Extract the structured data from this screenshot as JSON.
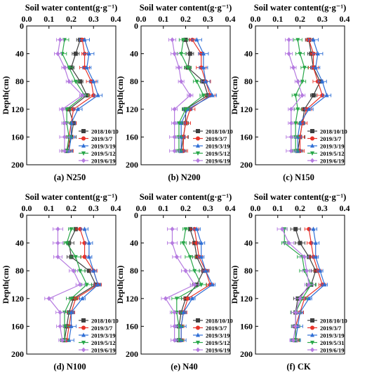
{
  "colors": {
    "2018/10/10": "#3f3f3f",
    "2019/3/7": "#e8332a",
    "2019/3/19": "#2f6fd6",
    "2019/5/12": "#2aa84a",
    "2019/5/31": "#2aa84a",
    "2019/6/19": "#b57ae0"
  },
  "markers": {
    "2018/10/10": "square",
    "2019/3/7": "circle",
    "2019/3/19": "triangle-up",
    "2019/5/12": "triangle-down",
    "2019/5/31": "triangle-down",
    "2019/6/19": "diamond"
  },
  "chart_data": [
    {
      "type": "line",
      "caption": "(a) N250",
      "xlabel": "Soil water content(g·g⁻¹)",
      "ylabel": "Depth(cm)",
      "xlim": [
        0,
        0.4
      ],
      "ylim": [
        0,
        200
      ],
      "y_inverted": true,
      "x_axis_position": "top",
      "xticks": [
        "0.0",
        "0.1",
        "0.2",
        "0.3",
        "0.4"
      ],
      "yticks": [
        "0",
        "40",
        "80",
        "120",
        "160",
        "200"
      ],
      "legend_position": "bottom-right",
      "depths": [
        20,
        40,
        60,
        80,
        100,
        120,
        140,
        160,
        180
      ],
      "series": [
        {
          "name": "2018/10/10",
          "values": [
            0.24,
            0.22,
            0.2,
            0.24,
            0.27,
            0.19,
            0.21,
            0.2,
            0.18
          ]
        },
        {
          "name": "2019/3/7",
          "values": [
            0.25,
            0.26,
            0.26,
            0.29,
            0.3,
            0.21,
            0.2,
            0.19,
            0.19
          ]
        },
        {
          "name": "2019/3/19",
          "values": [
            0.26,
            0.28,
            0.27,
            0.3,
            0.32,
            0.23,
            0.2,
            0.2,
            0.19
          ]
        },
        {
          "name": "2019/5/12",
          "values": [
            0.17,
            0.16,
            0.19,
            0.22,
            0.26,
            0.18,
            0.18,
            0.19,
            0.18
          ]
        },
        {
          "name": "2019/6/19",
          "values": [
            0.15,
            0.14,
            0.17,
            0.19,
            0.25,
            0.16,
            0.17,
            0.17,
            0.17
          ]
        }
      ]
    },
    {
      "type": "line",
      "caption": "(b) N200",
      "xlabel": "Soil water content(g·g⁻¹)",
      "ylabel": "Depth(cm)",
      "xlim": [
        0,
        0.4
      ],
      "ylim": [
        0,
        200
      ],
      "y_inverted": true,
      "x_axis_position": "top",
      "xticks": [
        "0.0",
        "0.1",
        "0.2",
        "0.3",
        "0.4"
      ],
      "yticks": [
        "0",
        "40",
        "80",
        "120",
        "160",
        "200"
      ],
      "legend_position": "bottom-right",
      "depths": [
        20,
        40,
        60,
        80,
        100,
        120,
        140,
        160,
        180
      ],
      "series": [
        {
          "name": "2018/10/10",
          "values": [
            0.2,
            0.22,
            0.21,
            0.28,
            0.3,
            0.2,
            0.2,
            0.19,
            0.18
          ]
        },
        {
          "name": "2019/3/7",
          "values": [
            0.23,
            0.27,
            0.27,
            0.29,
            0.31,
            0.22,
            0.2,
            0.19,
            0.19
          ]
        },
        {
          "name": "2019/3/19",
          "values": [
            0.25,
            0.28,
            0.28,
            0.29,
            0.32,
            0.21,
            0.18,
            0.18,
            0.18
          ]
        },
        {
          "name": "2019/5/12",
          "values": [
            0.19,
            0.18,
            0.21,
            0.25,
            0.28,
            0.2,
            0.17,
            0.17,
            0.17
          ]
        },
        {
          "name": "2019/6/19",
          "values": [
            0.14,
            0.15,
            0.17,
            0.18,
            0.22,
            0.15,
            0.15,
            0.15,
            0.15
          ]
        }
      ]
    },
    {
      "type": "line",
      "caption": "(c) N150",
      "xlabel": "Soil water content(g·g⁻¹)",
      "ylabel": "Depth(cm)",
      "xlim": [
        0,
        0.4
      ],
      "ylim": [
        0,
        200
      ],
      "y_inverted": true,
      "x_axis_position": "top",
      "xticks": [
        "0.0",
        "0.1",
        "0.2",
        "0.3",
        "0.4"
      ],
      "yticks": [
        "0",
        "40",
        "80",
        "120",
        "160",
        "200"
      ],
      "legend_position": "bottom-right",
      "depths": [
        20,
        40,
        60,
        80,
        100,
        120,
        140,
        160,
        180
      ],
      "series": [
        {
          "name": "2018/10/10",
          "values": [
            0.24,
            0.25,
            0.26,
            0.29,
            0.26,
            0.22,
            0.21,
            0.2,
            0.19
          ]
        },
        {
          "name": "2019/3/7",
          "values": [
            0.24,
            0.26,
            0.26,
            0.28,
            0.3,
            0.23,
            0.21,
            0.2,
            0.2
          ]
        },
        {
          "name": "2019/3/19",
          "values": [
            0.26,
            0.28,
            0.27,
            0.3,
            0.32,
            0.24,
            0.2,
            0.19,
            0.19
          ]
        },
        {
          "name": "2019/5/12",
          "values": [
            0.19,
            0.2,
            0.22,
            0.21,
            0.18,
            0.19,
            0.18,
            0.18,
            0.18
          ]
        },
        {
          "name": "2019/6/19",
          "values": [
            0.15,
            0.15,
            0.17,
            0.19,
            0.21,
            0.16,
            0.16,
            0.16,
            0.16
          ]
        }
      ]
    },
    {
      "type": "line",
      "caption": "(d) N100",
      "xlabel": "Soil water content(g·g⁻¹)",
      "ylabel": "Depth(cm)",
      "xlim": [
        0,
        0.4
      ],
      "ylim": [
        0,
        200
      ],
      "y_inverted": true,
      "x_axis_position": "top",
      "xticks": [
        "0.0",
        "0.1",
        "0.2",
        "0.3",
        "0.4"
      ],
      "yticks": [
        "0",
        "40",
        "80",
        "120",
        "160",
        "200"
      ],
      "legend_position": "bottom-right",
      "depths": [
        20,
        40,
        60,
        80,
        100,
        120,
        140,
        160,
        180
      ],
      "series": [
        {
          "name": "2018/10/10",
          "values": [
            0.22,
            0.19,
            0.2,
            0.28,
            0.31,
            0.21,
            0.19,
            0.18,
            0.17
          ]
        },
        {
          "name": "2019/3/7",
          "values": [
            0.24,
            0.26,
            0.26,
            0.3,
            0.32,
            0.22,
            0.2,
            0.19,
            0.18
          ]
        },
        {
          "name": "2019/3/19",
          "values": [
            0.26,
            0.28,
            0.28,
            0.3,
            0.32,
            0.25,
            0.2,
            0.2,
            0.19
          ]
        },
        {
          "name": "2019/5/12",
          "values": [
            0.2,
            0.18,
            0.22,
            0.24,
            0.27,
            0.2,
            0.17,
            0.17,
            0.17
          ]
        },
        {
          "name": "2019/6/19",
          "values": [
            0.14,
            0.14,
            0.14,
            0.21,
            0.24,
            0.1,
            0.15,
            0.15,
            0.16
          ]
        }
      ]
    },
    {
      "type": "line",
      "caption": "(e) N40",
      "xlabel": "Soil water content(g·g⁻¹)",
      "ylabel": "Depth(cm)",
      "xlim": [
        0,
        0.4
      ],
      "ylim": [
        0,
        200
      ],
      "y_inverted": true,
      "x_axis_position": "top",
      "xticks": [
        "0.0",
        "0.1",
        "0.2",
        "0.3",
        "0.4"
      ],
      "yticks": [
        "0",
        "40",
        "80",
        "120",
        "160",
        "200"
      ],
      "legend_position": "bottom-right",
      "depths": [
        20,
        40,
        60,
        80,
        100,
        120,
        140,
        160,
        180
      ],
      "series": [
        {
          "name": "2018/10/10",
          "values": [
            0.22,
            0.24,
            0.25,
            0.28,
            0.25,
            0.2,
            0.18,
            0.17,
            0.17
          ]
        },
        {
          "name": "2019/3/7",
          "values": [
            0.24,
            0.25,
            0.26,
            0.29,
            0.31,
            0.21,
            0.19,
            0.18,
            0.18
          ]
        },
        {
          "name": "2019/3/19",
          "values": [
            0.25,
            0.27,
            0.27,
            0.29,
            0.32,
            0.23,
            0.19,
            0.18,
            0.18
          ]
        },
        {
          "name": "2019/5/12",
          "values": [
            0.2,
            0.19,
            0.22,
            0.24,
            0.27,
            0.16,
            0.16,
            0.17,
            0.17
          ]
        },
        {
          "name": "2019/6/19",
          "values": [
            0.14,
            0.14,
            0.16,
            0.2,
            0.24,
            0.11,
            0.15,
            0.15,
            0.15
          ]
        }
      ]
    },
    {
      "type": "line",
      "caption": "(f) CK",
      "xlabel": "Soil water content(g·g⁻¹)",
      "ylabel": "Depth(cm)",
      "xlim": [
        0,
        0.4
      ],
      "ylim": [
        0,
        200
      ],
      "y_inverted": true,
      "x_axis_position": "top",
      "xticks": [
        "0.0",
        "0.1",
        "0.2",
        "0.3",
        "0.4"
      ],
      "yticks": [
        "0",
        "40",
        "80",
        "120",
        "160",
        "200"
      ],
      "legend_position": "bottom-right",
      "depths": [
        20,
        40,
        60,
        80,
        100,
        120,
        140,
        160,
        180
      ],
      "series": [
        {
          "name": "2018/10/10",
          "values": [
            0.18,
            0.2,
            0.24,
            0.27,
            0.25,
            0.19,
            0.18,
            0.18,
            0.18
          ]
        },
        {
          "name": "2019/3/7",
          "values": [
            0.24,
            0.25,
            0.26,
            0.28,
            0.3,
            0.22,
            0.2,
            0.18,
            0.18
          ]
        },
        {
          "name": "2019/3/19",
          "values": [
            0.26,
            0.27,
            0.27,
            0.29,
            0.31,
            0.24,
            0.2,
            0.19,
            0.18
          ]
        },
        {
          "name": "2019/5/31",
          "values": [
            0.13,
            0.13,
            0.21,
            0.22,
            0.25,
            0.21,
            0.18,
            0.18,
            0.18
          ]
        },
        {
          "name": "2019/6/19",
          "values": [
            0.12,
            0.15,
            0.22,
            0.23,
            0.24,
            0.2,
            0.18,
            0.18,
            0.17
          ]
        }
      ]
    }
  ]
}
